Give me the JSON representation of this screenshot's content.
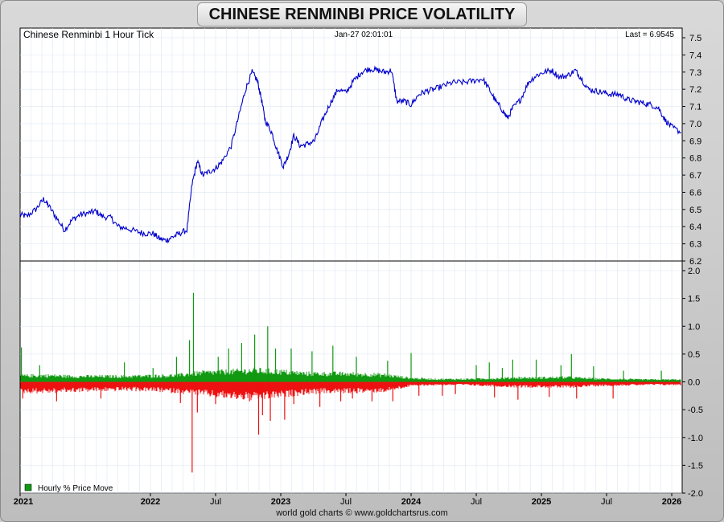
{
  "title": "CHINESE RENMINBI PRICE VOLATILITY",
  "credit": "world gold charts © www.goldchartsrus.com",
  "chart_data": [
    {
      "type": "line",
      "name": "price-panel",
      "header_left": "Chinese Renminbi 1 Hour Tick",
      "header_center": "Jan-27  02:01:01",
      "header_right": "Last = 6.9545",
      "ylim": [
        6.2,
        7.55
      ],
      "y_ticks": [
        "7.5",
        "7.4",
        "7.3",
        "7.2",
        "7.1",
        "7.0",
        "6.9",
        "6.8",
        "6.7",
        "6.6",
        "6.5",
        "6.4",
        "6.3",
        "6.2"
      ],
      "xlim": [
        2021.0,
        2026.08
      ],
      "color": "#0000cc",
      "points": [
        [
          2021.0,
          6.47
        ],
        [
          2021.05,
          6.46
        ],
        [
          2021.12,
          6.5
        ],
        [
          2021.18,
          6.56
        ],
        [
          2021.22,
          6.52
        ],
        [
          2021.28,
          6.45
        ],
        [
          2021.34,
          6.38
        ],
        [
          2021.4,
          6.44
        ],
        [
          2021.46,
          6.47
        ],
        [
          2021.53,
          6.48
        ],
        [
          2021.58,
          6.49
        ],
        [
          2021.63,
          6.46
        ],
        [
          2021.7,
          6.45
        ],
        [
          2021.75,
          6.4
        ],
        [
          2021.82,
          6.39
        ],
        [
          2021.9,
          6.37
        ],
        [
          2021.96,
          6.36
        ],
        [
          2022.02,
          6.36
        ],
        [
          2022.07,
          6.33
        ],
        [
          2022.12,
          6.32
        ],
        [
          2022.17,
          6.34
        ],
        [
          2022.22,
          6.36
        ],
        [
          2022.28,
          6.38
        ],
        [
          2022.32,
          6.65
        ],
        [
          2022.36,
          6.78
        ],
        [
          2022.4,
          6.7
        ],
        [
          2022.45,
          6.72
        ],
        [
          2022.5,
          6.74
        ],
        [
          2022.55,
          6.78
        ],
        [
          2022.62,
          6.87
        ],
        [
          2022.68,
          7.05
        ],
        [
          2022.73,
          7.2
        ],
        [
          2022.78,
          7.3
        ],
        [
          2022.82,
          7.25
        ],
        [
          2022.85,
          7.15
        ],
        [
          2022.88,
          7.02
        ],
        [
          2022.93,
          6.95
        ],
        [
          2022.97,
          6.85
        ],
        [
          2023.02,
          6.75
        ],
        [
          2023.06,
          6.82
        ],
        [
          2023.1,
          6.93
        ],
        [
          2023.15,
          6.87
        ],
        [
          2023.2,
          6.88
        ],
        [
          2023.26,
          6.9
        ],
        [
          2023.32,
          7.02
        ],
        [
          2023.38,
          7.12
        ],
        [
          2023.44,
          7.2
        ],
        [
          2023.5,
          7.18
        ],
        [
          2023.56,
          7.25
        ],
        [
          2023.62,
          7.3
        ],
        [
          2023.68,
          7.32
        ],
        [
          2023.74,
          7.31
        ],
        [
          2023.8,
          7.3
        ],
        [
          2023.85,
          7.31
        ],
        [
          2023.89,
          7.13
        ],
        [
          2023.95,
          7.13
        ],
        [
          2024.0,
          7.11
        ],
        [
          2024.06,
          7.17
        ],
        [
          2024.12,
          7.19
        ],
        [
          2024.18,
          7.2
        ],
        [
          2024.25,
          7.22
        ],
        [
          2024.32,
          7.24
        ],
        [
          2024.4,
          7.24
        ],
        [
          2024.48,
          7.25
        ],
        [
          2024.55,
          7.26
        ],
        [
          2024.6,
          7.2
        ],
        [
          2024.65,
          7.13
        ],
        [
          2024.7,
          7.08
        ],
        [
          2024.74,
          7.03
        ],
        [
          2024.78,
          7.09
        ],
        [
          2024.84,
          7.14
        ],
        [
          2024.9,
          7.24
        ],
        [
          2024.96,
          7.28
        ],
        [
          2025.02,
          7.3
        ],
        [
          2025.08,
          7.31
        ],
        [
          2025.14,
          7.27
        ],
        [
          2025.2,
          7.28
        ],
        [
          2025.26,
          7.31
        ],
        [
          2025.3,
          7.27
        ],
        [
          2025.36,
          7.2
        ],
        [
          2025.42,
          7.19
        ],
        [
          2025.48,
          7.18
        ],
        [
          2025.54,
          7.17
        ],
        [
          2025.6,
          7.17
        ],
        [
          2025.66,
          7.14
        ],
        [
          2025.72,
          7.13
        ],
        [
          2025.78,
          7.12
        ],
        [
          2025.84,
          7.11
        ],
        [
          2025.9,
          7.09
        ],
        [
          2025.95,
          7.02
        ],
        [
          2026.0,
          6.98
        ],
        [
          2026.07,
          6.95
        ]
      ]
    },
    {
      "type": "bar",
      "name": "volatility-panel",
      "legend": "Hourly % Price Move",
      "ylim": [
        -2.0,
        2.1
      ],
      "y_ticks": [
        "2.0",
        "1.5",
        "1.0",
        "0.5",
        "0.0",
        "-0.5",
        "-1.0",
        "-1.5",
        "-2.0"
      ],
      "xlim": [
        2021.0,
        2026.08
      ],
      "positive_color": "#119911",
      "negative_color": "#ee1111",
      "envelope": [
        [
          2021.0,
          0.13,
          -0.2
        ],
        [
          2021.2,
          0.14,
          -0.2
        ],
        [
          2021.4,
          0.12,
          -0.18
        ],
        [
          2021.6,
          0.12,
          -0.17
        ],
        [
          2021.8,
          0.12,
          -0.16
        ],
        [
          2022.0,
          0.13,
          -0.17
        ],
        [
          2022.2,
          0.14,
          -0.2
        ],
        [
          2022.4,
          0.2,
          -0.25
        ],
        [
          2022.6,
          0.22,
          -0.3
        ],
        [
          2022.8,
          0.25,
          -0.33
        ],
        [
          2023.0,
          0.22,
          -0.28
        ],
        [
          2023.2,
          0.18,
          -0.22
        ],
        [
          2023.4,
          0.18,
          -0.2
        ],
        [
          2023.6,
          0.17,
          -0.2
        ],
        [
          2023.8,
          0.15,
          -0.18
        ],
        [
          2024.0,
          0.08,
          -0.08
        ],
        [
          2024.2,
          0.06,
          -0.06
        ],
        [
          2024.4,
          0.06,
          -0.06
        ],
        [
          2024.6,
          0.07,
          -0.08
        ],
        [
          2024.8,
          0.09,
          -0.1
        ],
        [
          2025.0,
          0.09,
          -0.1
        ],
        [
          2025.2,
          0.1,
          -0.11
        ],
        [
          2025.4,
          0.07,
          -0.08
        ],
        [
          2025.6,
          0.06,
          -0.07
        ],
        [
          2025.8,
          0.05,
          -0.06
        ],
        [
          2026.08,
          0.05,
          -0.06
        ]
      ],
      "spikes": [
        [
          2021.01,
          0.62
        ],
        [
          2021.02,
          -0.3
        ],
        [
          2021.15,
          0.3
        ],
        [
          2021.28,
          -0.35
        ],
        [
          2021.62,
          -0.3
        ],
        [
          2021.8,
          0.35
        ],
        [
          2022.02,
          0.25
        ],
        [
          2022.2,
          0.45
        ],
        [
          2022.23,
          -0.38
        ],
        [
          2022.33,
          1.6
        ],
        [
          2022.32,
          -1.63
        ],
        [
          2022.3,
          0.75
        ],
        [
          2022.36,
          -0.55
        ],
        [
          2022.5,
          -0.4
        ],
        [
          2022.52,
          0.45
        ],
        [
          2022.6,
          0.6
        ],
        [
          2022.7,
          0.7
        ],
        [
          2022.76,
          -0.35
        ],
        [
          2022.8,
          0.85
        ],
        [
          2022.83,
          -0.95
        ],
        [
          2022.86,
          -0.6
        ],
        [
          2022.9,
          1.0
        ],
        [
          2022.92,
          -0.7
        ],
        [
          2022.96,
          0.6
        ],
        [
          2023.03,
          -0.68
        ],
        [
          2023.08,
          0.6
        ],
        [
          2023.1,
          -0.4
        ],
        [
          2023.24,
          0.55
        ],
        [
          2023.3,
          -0.45
        ],
        [
          2023.4,
          0.65
        ],
        [
          2023.46,
          -0.35
        ],
        [
          2023.55,
          -0.3
        ],
        [
          2023.58,
          0.45
        ],
        [
          2023.7,
          -0.35
        ],
        [
          2023.82,
          0.38
        ],
        [
          2023.86,
          -0.35
        ],
        [
          2024.0,
          0.52
        ],
        [
          2024.06,
          -0.25
        ],
        [
          2024.24,
          -0.25
        ],
        [
          2024.34,
          -0.22
        ],
        [
          2024.5,
          0.3
        ],
        [
          2024.6,
          0.35
        ],
        [
          2024.64,
          -0.28
        ],
        [
          2024.7,
          0.25
        ],
        [
          2024.78,
          0.4
        ],
        [
          2024.82,
          -0.32
        ],
        [
          2024.96,
          0.4
        ],
        [
          2025.06,
          -0.27
        ],
        [
          2025.15,
          0.3
        ],
        [
          2025.23,
          0.5
        ],
        [
          2025.27,
          -0.3
        ],
        [
          2025.4,
          0.28
        ],
        [
          2025.55,
          -0.3
        ],
        [
          2025.63,
          0.2
        ],
        [
          2025.92,
          0.2
        ]
      ]
    }
  ],
  "x_axis": {
    "xlim": [
      2021.0,
      2026.08
    ],
    "labels": [
      {
        "text": "2021",
        "x": 2021.0,
        "bold": true
      },
      {
        "text": "2022",
        "x": 2022.0,
        "bold": true
      },
      {
        "text": "Jul",
        "x": 2022.5,
        "bold": false
      },
      {
        "text": "2023",
        "x": 2023.0,
        "bold": true
      },
      {
        "text": "Jul",
        "x": 2023.5,
        "bold": false
      },
      {
        "text": "2024",
        "x": 2024.0,
        "bold": true
      },
      {
        "text": "Jul",
        "x": 2024.5,
        "bold": false
      },
      {
        "text": "2025",
        "x": 2025.0,
        "bold": true
      },
      {
        "text": "Jul",
        "x": 2025.5,
        "bold": false
      },
      {
        "text": "2026",
        "x": 2026.0,
        "bold": true
      }
    ]
  }
}
